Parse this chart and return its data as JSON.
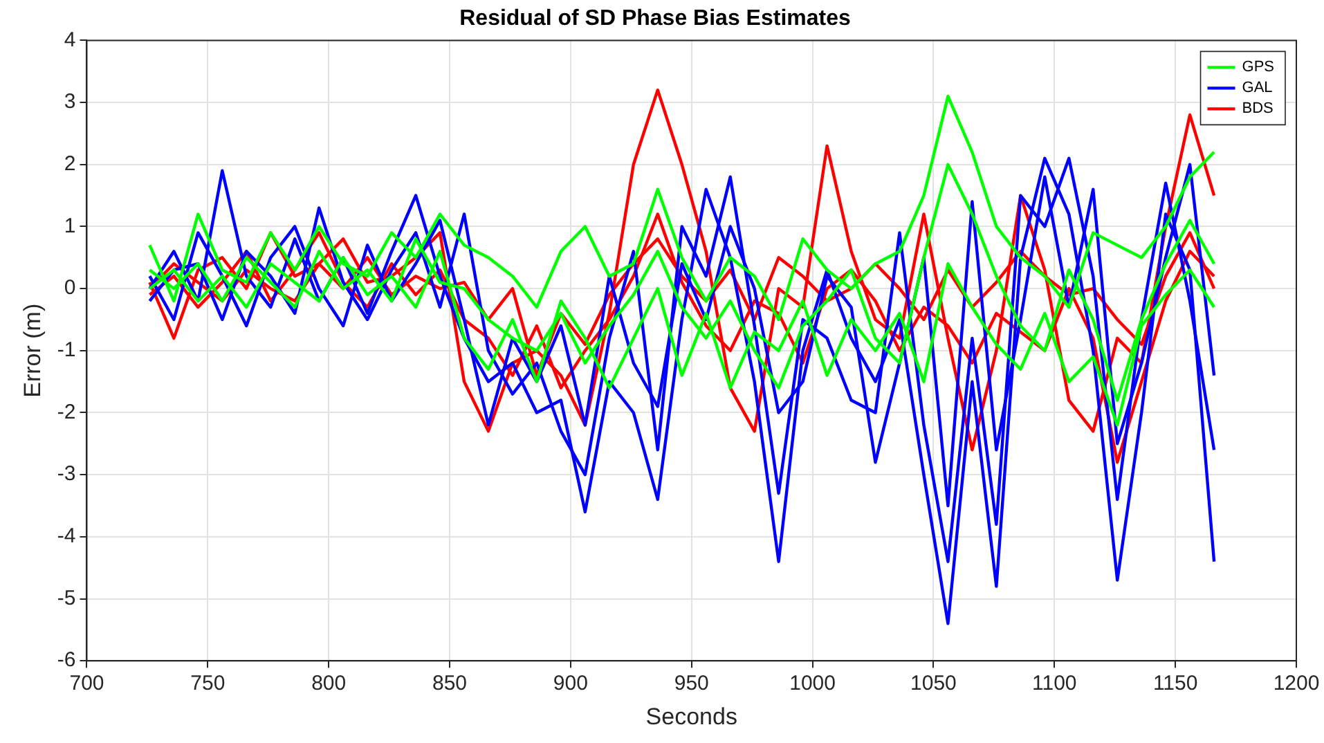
{
  "chart_data": {
    "type": "line",
    "title": "Residual of SD Phase Bias Estimates",
    "xlabel": "Seconds",
    "ylabel": "Error (m)",
    "x": [
      726,
      736,
      746,
      756,
      766,
      776,
      786,
      796,
      806,
      816,
      826,
      836,
      846,
      856,
      866,
      876,
      886,
      896,
      906,
      916,
      926,
      936,
      946,
      956,
      966,
      976,
      986,
      996,
      1006,
      1016,
      1026,
      1036,
      1046,
      1056,
      1066,
      1076,
      1086,
      1096,
      1106,
      1116,
      1126,
      1136,
      1146,
      1156,
      1166
    ],
    "series": [
      {
        "name": "GPS",
        "color": "#00ff00",
        "values": [
          0.7,
          -0.2,
          1.2,
          0.3,
          0.1,
          0.9,
          0.3,
          1.0,
          0.4,
          0.2,
          0.9,
          0.5,
          1.2,
          0.7,
          0.5,
          0.2,
          -0.3,
          0.6,
          1.0,
          0.2,
          0.4,
          1.6,
          0.5,
          -0.2,
          0.5,
          0.2,
          -0.5,
          0.8,
          0.3,
          0.0,
          0.4,
          0.6,
          1.5,
          3.1,
          2.2,
          1.0,
          0.5,
          0.2,
          -0.3,
          0.9,
          0.7,
          0.5,
          1.0,
          1.8,
          2.2
        ]
      },
      {
        "color": "#00ff00",
        "values": [
          0.3,
          0.0,
          0.4,
          -0.2,
          0.5,
          0.1,
          -0.3,
          0.6,
          0.0,
          0.3,
          -0.2,
          0.8,
          0.1,
          0.0,
          -0.5,
          -0.8,
          -1.0,
          -0.4,
          -1.2,
          -0.6,
          -0.1,
          0.6,
          -0.3,
          -0.8,
          -0.2,
          -1.0,
          -1.6,
          -0.6,
          -0.2,
          0.3,
          -0.8,
          -1.2,
          0.5,
          2.0,
          1.2,
          0.2,
          -0.6,
          -1.0,
          0.3,
          -0.5,
          -1.8,
          -0.5,
          0.4,
          1.1,
          0.4
        ]
      },
      {
        "color": "#00ff00",
        "values": [
          0.0,
          0.3,
          -0.2,
          0.2,
          -0.3,
          0.4,
          0.1,
          -0.2,
          0.5,
          -0.1,
          0.2,
          -0.3,
          0.6,
          -0.8,
          -1.3,
          -0.5,
          -1.5,
          -0.2,
          -0.8,
          -1.6,
          -0.8,
          0.0,
          -1.4,
          -0.4,
          -1.6,
          -0.7,
          -1.0,
          -0.2,
          -1.4,
          -0.5,
          -1.0,
          -0.4,
          -1.5,
          0.4,
          -0.3,
          -0.9,
          -1.3,
          -0.4,
          -1.5,
          -1.1,
          -2.2,
          -0.6,
          -0.1,
          0.3,
          -0.3
        ]
      },
      {
        "name": "GAL",
        "color": "#0000ff",
        "values": [
          0.0,
          0.6,
          -0.2,
          1.9,
          0.2,
          -0.3,
          0.8,
          -0.2,
          0.5,
          -0.4,
          0.6,
          1.5,
          0.2,
          -0.8,
          -1.5,
          -1.2,
          -2.0,
          -1.8,
          -3.6,
          -1.5,
          -2.0,
          -3.4,
          -0.5,
          1.6,
          0.5,
          -1.5,
          -4.4,
          -1.0,
          0.3,
          -0.8,
          -1.5,
          -0.5,
          -3.0,
          -5.4,
          -1.5,
          -4.8,
          0.5,
          2.1,
          1.2,
          -1.0,
          -4.7,
          -2.0,
          1.2,
          0.3,
          -4.4
        ]
      },
      {
        "color": "#0000ff",
        "values": [
          -0.2,
          0.3,
          0.4,
          -0.5,
          0.6,
          0.2,
          -0.4,
          1.3,
          0.1,
          -0.5,
          0.3,
          0.9,
          -0.3,
          1.2,
          -1.0,
          -1.7,
          -1.2,
          -2.3,
          -3.0,
          -0.8,
          0.6,
          -2.6,
          1.0,
          0.2,
          1.8,
          -0.6,
          -3.3,
          -0.5,
          -0.8,
          -1.8,
          -2.0,
          0.9,
          -2.2,
          -4.4,
          -0.8,
          -3.8,
          1.5,
          1.0,
          2.1,
          0.2,
          -3.4,
          -0.5,
          1.7,
          -0.2,
          -2.6
        ]
      },
      {
        "color": "#0000ff",
        "values": [
          0.2,
          -0.5,
          0.9,
          0.2,
          -0.6,
          0.5,
          1.0,
          0.0,
          -0.6,
          0.7,
          -0.2,
          0.4,
          1.1,
          -0.5,
          -2.2,
          -0.8,
          -1.5,
          -0.6,
          -2.2,
          0.2,
          -1.2,
          -1.9,
          0.4,
          -0.5,
          1.0,
          0.0,
          -2.0,
          -1.5,
          0.2,
          -0.3,
          -2.8,
          -1.2,
          0.5,
          -3.5,
          1.4,
          -2.6,
          -0.5,
          1.8,
          -0.3,
          1.6,
          -2.5,
          -1.2,
          0.5,
          2.0,
          -1.4
        ]
      },
      {
        "name": "BDS",
        "color": "#ff0000",
        "values": [
          0.1,
          -0.8,
          0.3,
          0.5,
          0.0,
          0.9,
          0.2,
          0.4,
          0.8,
          0.1,
          0.2,
          0.5,
          0.9,
          -1.5,
          -2.3,
          -1.2,
          -1.0,
          -1.4,
          -2.2,
          -0.4,
          2.0,
          3.2,
          2.0,
          0.6,
          -1.6,
          -2.3,
          0.0,
          -0.3,
          2.3,
          0.6,
          -0.5,
          -0.8,
          1.2,
          -0.8,
          -2.6,
          -1.0,
          1.5,
          0.3,
          -1.8,
          -2.3,
          -0.8,
          -1.2,
          1.0,
          2.8,
          1.5
        ]
      },
      {
        "color": "#ff0000",
        "values": [
          -0.1,
          0.2,
          -0.3,
          0.1,
          0.6,
          -0.2,
          0.3,
          0.9,
          0.1,
          -0.3,
          0.4,
          -0.1,
          0.3,
          -0.5,
          -0.8,
          -1.4,
          -0.6,
          -1.6,
          -1.0,
          -0.5,
          0.2,
          1.2,
          0.1,
          -0.6,
          -1.0,
          -0.2,
          -0.4,
          -1.2,
          0.0,
          0.3,
          -0.2,
          -1.0,
          -0.3,
          -0.6,
          -1.2,
          -0.4,
          -0.7,
          -1.0,
          0.0,
          -0.8,
          -2.8,
          -1.5,
          -0.2,
          0.6,
          0.2
        ]
      },
      {
        "color": "#ff0000",
        "values": [
          0.0,
          0.4,
          0.1,
          -0.2,
          0.3,
          0.0,
          -0.2,
          0.4,
          0.0,
          0.5,
          -0.1,
          0.2,
          0.0,
          0.1,
          -0.5,
          0.0,
          -1.4,
          -0.4,
          -0.9,
          -0.1,
          0.4,
          0.8,
          0.2,
          -0.2,
          0.3,
          -0.5,
          0.5,
          0.2,
          -0.2,
          0.0,
          0.4,
          0.0,
          -0.5,
          0.3,
          -0.3,
          0.1,
          0.6,
          0.2,
          -0.1,
          0.0,
          -0.5,
          -0.9,
          0.2,
          0.9,
          0.0
        ]
      }
    ],
    "xlim": [
      700,
      1200
    ],
    "xticks": [
      700,
      750,
      800,
      850,
      900,
      950,
      1000,
      1050,
      1100,
      1150,
      1200
    ],
    "ylim": [
      -6,
      4
    ],
    "yticks": [
      -6,
      -5,
      -4,
      -3,
      -2,
      -1,
      0,
      1,
      2,
      3,
      4
    ],
    "grid": true,
    "legend": "top right",
    "marker": "none",
    "line_style": "solid"
  }
}
